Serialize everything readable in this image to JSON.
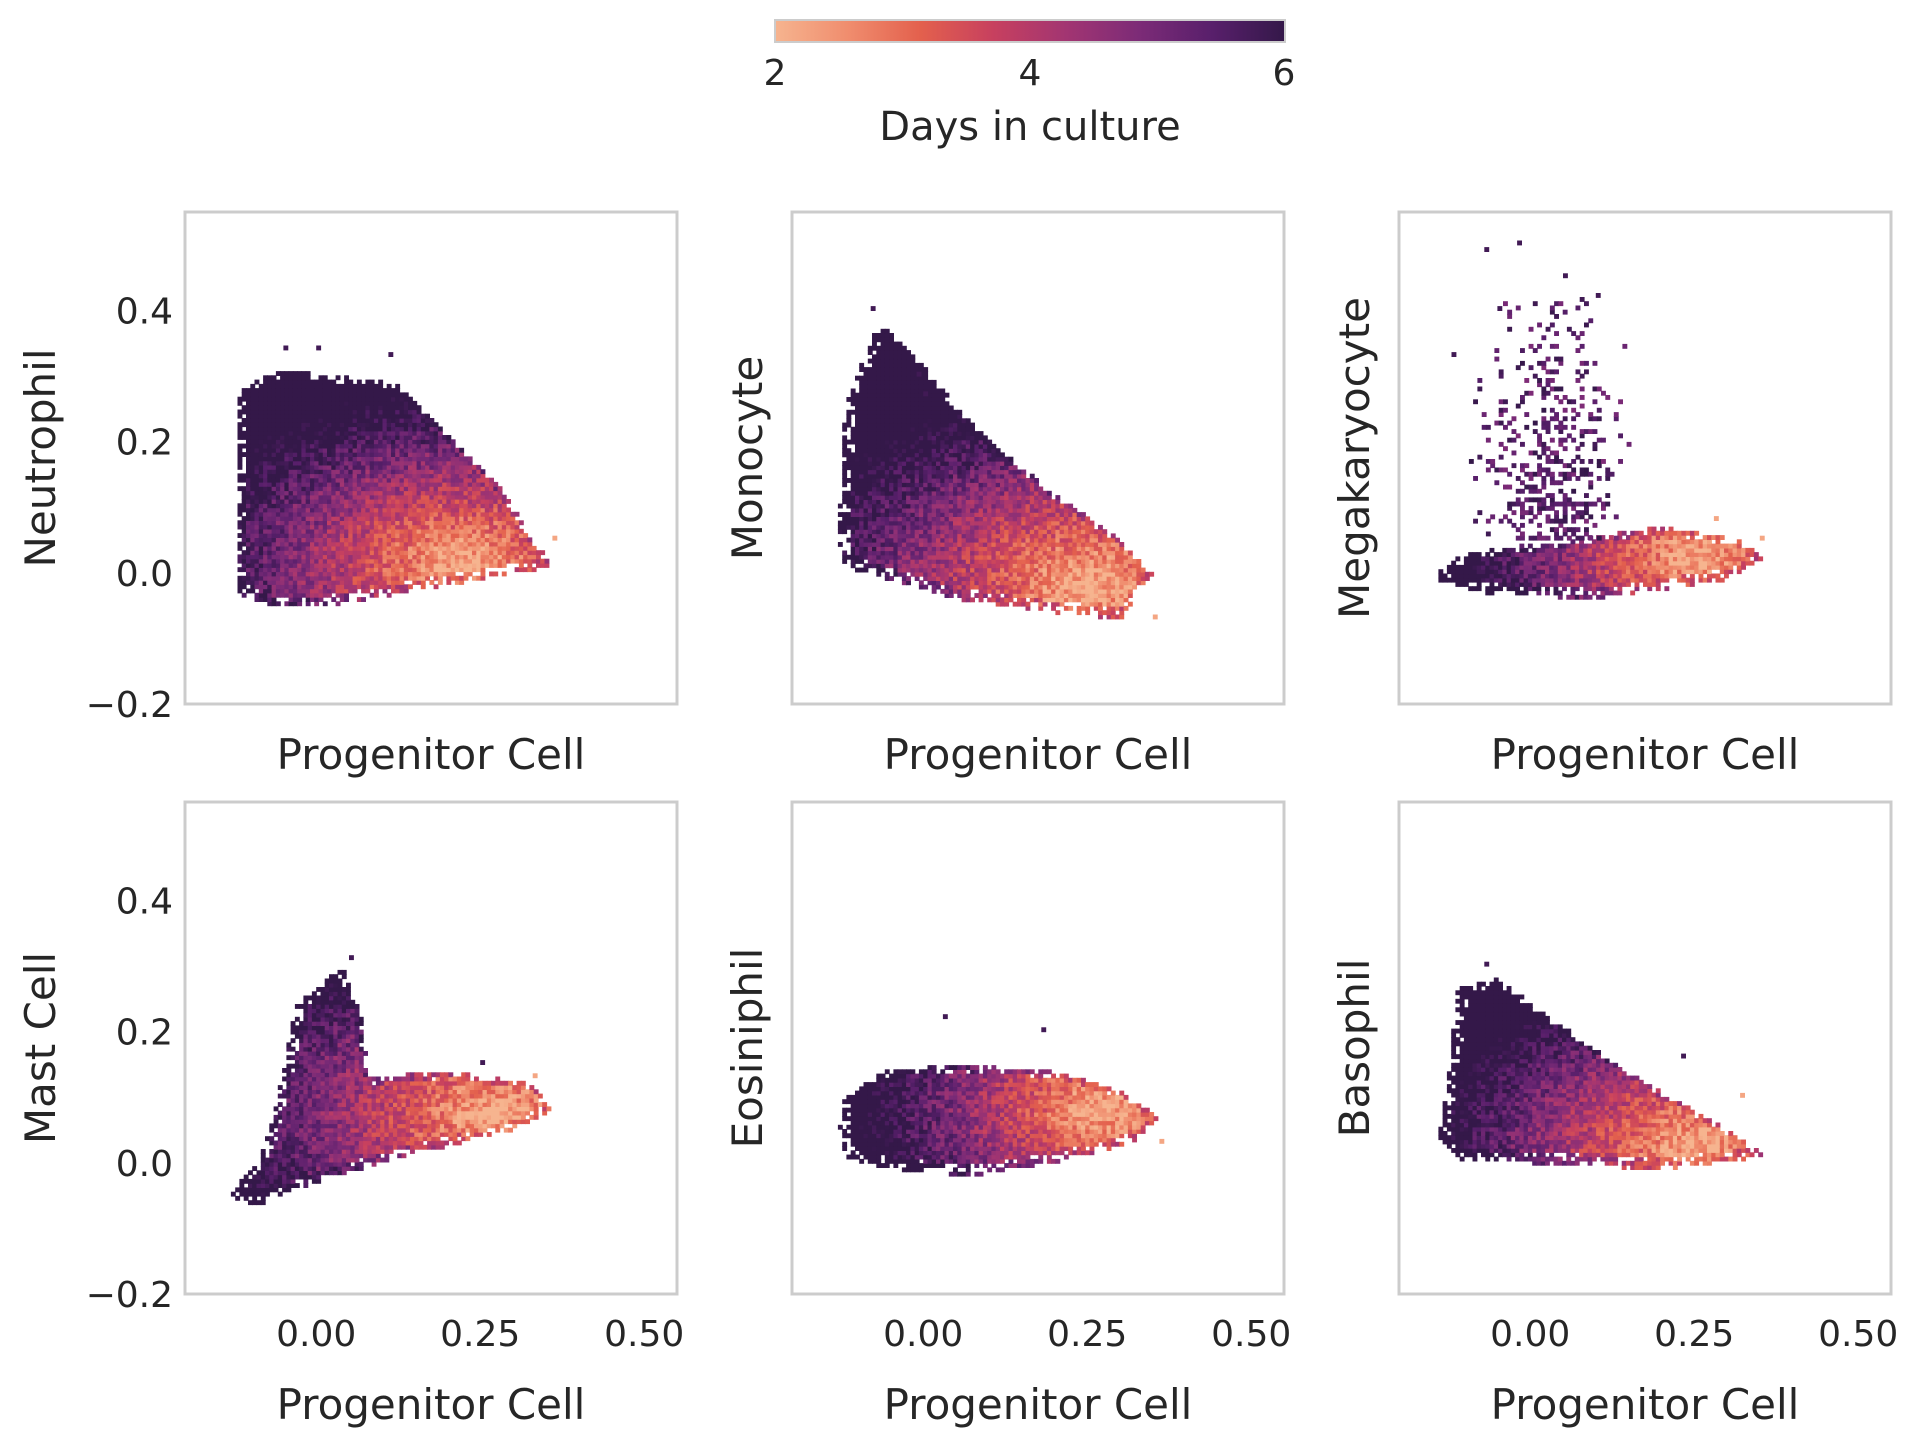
{
  "colorbar": {
    "label": "Days in culture",
    "range": [
      2,
      6
    ],
    "ticks": [
      "2",
      "4",
      "6"
    ],
    "colormap": [
      "#f6b48f",
      "#f08d6e",
      "#e3604d",
      "#c7405f",
      "#a23572",
      "#7c2b77",
      "#581f6b",
      "#341849"
    ]
  },
  "chart_data": [
    {
      "type": "heatmap",
      "panel": "neutrophil",
      "xlabel": "Progenitor Cell",
      "ylabel": "Neutrophil",
      "xlim": [
        -0.2,
        0.55
      ],
      "ylim": [
        -0.2,
        0.55
      ],
      "yticks": [
        "−0.2",
        "0.0",
        "0.2",
        "0.4"
      ],
      "xticks": [],
      "shape": [
        [
          -0.12,
          -0.03
        ],
        [
          -0.12,
          0.28
        ],
        [
          -0.05,
          0.31
        ],
        [
          0.12,
          0.29
        ],
        [
          0.28,
          0.13
        ],
        [
          0.36,
          0.01
        ],
        [
          0.25,
          -0.01
        ],
        [
          0.02,
          -0.05
        ],
        [
          -0.08,
          -0.05
        ]
      ],
      "early_region": [
        0.22,
        0.01
      ],
      "outliers": [
        [
          0.11,
          0.33
        ],
        [
          0.0,
          0.34
        ],
        [
          -0.05,
          0.34
        ],
        [
          0.36,
          0.05
        ]
      ]
    },
    {
      "type": "heatmap",
      "panel": "monocyte",
      "xlabel": "Progenitor Cell",
      "ylabel": "Monocyte",
      "xlim": [
        -0.2,
        0.55
      ],
      "ylim": [
        -0.2,
        0.55
      ],
      "yticks": [],
      "xticks": [],
      "shape": [
        [
          -0.13,
          0.05
        ],
        [
          -0.12,
          0.25
        ],
        [
          -0.07,
          0.38
        ],
        [
          -0.03,
          0.35
        ],
        [
          0.08,
          0.22
        ],
        [
          0.2,
          0.12
        ],
        [
          0.3,
          0.05
        ],
        [
          0.35,
          0.0
        ],
        [
          0.3,
          -0.07
        ],
        [
          0.2,
          -0.06
        ],
        [
          0.05,
          -0.04
        ],
        [
          -0.05,
          -0.01
        ],
        [
          -0.12,
          0.01
        ]
      ],
      "early_region": [
        0.25,
        -0.02
      ],
      "outliers": [
        [
          -0.08,
          0.4
        ],
        [
          -0.01,
          0.3
        ],
        [
          0.35,
          -0.07
        ],
        [
          0.0,
          0.27
        ]
      ]
    },
    {
      "type": "heatmap",
      "panel": "megakaryocyte",
      "xlabel": "Progenitor Cell",
      "ylabel": "Megakaryocyte",
      "xlim": [
        -0.2,
        0.55
      ],
      "ylim": [
        -0.2,
        0.55
      ],
      "yticks": [],
      "xticks": [],
      "shape": [
        [
          -0.14,
          0.0
        ],
        [
          -0.1,
          0.03
        ],
        [
          0.05,
          0.05
        ],
        [
          0.2,
          0.07
        ],
        [
          0.32,
          0.05
        ],
        [
          0.36,
          0.02
        ],
        [
          0.3,
          -0.01
        ],
        [
          0.1,
          -0.04
        ],
        [
          -0.07,
          -0.03
        ],
        [
          -0.14,
          -0.01
        ]
      ],
      "early_region": [
        0.25,
        0.02
      ],
      "outliers": [
        [
          -0.07,
          0.49
        ],
        [
          -0.02,
          0.5
        ],
        [
          0.05,
          0.45
        ],
        [
          -0.12,
          0.33
        ],
        [
          0.1,
          0.42
        ],
        [
          -0.05,
          0.4
        ],
        [
          0.35,
          0.05
        ],
        [
          0.28,
          0.08
        ]
      ],
      "sparse_cloud": {
        "x": [
          -0.1,
          0.15
        ],
        "y": [
          0.05,
          0.42
        ]
      }
    },
    {
      "type": "heatmap",
      "panel": "mast-cell",
      "xlabel": "Progenitor Cell",
      "ylabel": "Mast Cell",
      "xlim": [
        -0.2,
        0.55
      ],
      "ylim": [
        -0.2,
        0.55
      ],
      "yticks": [
        "−0.2",
        "0.0",
        "0.2",
        "0.4"
      ],
      "xticks": [
        "0.00",
        "0.25",
        "0.50"
      ],
      "shape": [
        [
          -0.13,
          -0.05
        ],
        [
          -0.08,
          0.02
        ],
        [
          -0.06,
          0.1
        ],
        [
          -0.03,
          0.24
        ],
        [
          0.04,
          0.3
        ],
        [
          0.07,
          0.22
        ],
        [
          0.08,
          0.13
        ],
        [
          0.2,
          0.14
        ],
        [
          0.33,
          0.12
        ],
        [
          0.36,
          0.08
        ],
        [
          0.3,
          0.05
        ],
        [
          0.1,
          0.0
        ],
        [
          0.0,
          -0.03
        ],
        [
          -0.1,
          -0.07
        ]
      ],
      "early_region": [
        0.27,
        0.07
      ],
      "outliers": [
        [
          0.05,
          0.31
        ],
        [
          0.33,
          0.13
        ],
        [
          0.25,
          0.15
        ]
      ]
    },
    {
      "type": "heatmap",
      "panel": "eosiniphil",
      "xlabel": "Progenitor Cell",
      "ylabel": "Eosiniphil",
      "xlim": [
        -0.2,
        0.55
      ],
      "ylim": [
        -0.2,
        0.55
      ],
      "yticks": [],
      "xticks": [
        "0.00",
        "0.25",
        "0.50"
      ],
      "shape": [
        [
          -0.13,
          0.05
        ],
        [
          -0.12,
          0.1
        ],
        [
          -0.06,
          0.14
        ],
        [
          0.05,
          0.15
        ],
        [
          0.2,
          0.14
        ],
        [
          0.3,
          0.11
        ],
        [
          0.36,
          0.07
        ],
        [
          0.32,
          0.03
        ],
        [
          0.2,
          0.0
        ],
        [
          0.08,
          -0.02
        ],
        [
          -0.05,
          -0.01
        ],
        [
          -0.12,
          0.01
        ]
      ],
      "early_region": [
        0.27,
        0.08
      ],
      "outliers": [
        [
          0.03,
          0.22
        ],
        [
          0.18,
          0.2
        ],
        [
          0.36,
          0.03
        ]
      ]
    },
    {
      "type": "heatmap",
      "panel": "basophil",
      "xlabel": "Progenitor Cell",
      "ylabel": "Basophil",
      "xlim": [
        -0.2,
        0.55
      ],
      "ylim": [
        -0.2,
        0.55
      ],
      "yticks": [],
      "xticks": [
        "0.00",
        "0.25",
        "0.50"
      ],
      "shape": [
        [
          -0.14,
          0.04
        ],
        [
          -0.13,
          0.1
        ],
        [
          -0.11,
          0.27
        ],
        [
          -0.05,
          0.28
        ],
        [
          0.06,
          0.2
        ],
        [
          0.18,
          0.12
        ],
        [
          0.3,
          0.05
        ],
        [
          0.36,
          0.01
        ],
        [
          0.2,
          -0.01
        ],
        [
          0.0,
          0.0
        ],
        [
          -0.1,
          0.0
        ]
      ],
      "early_region": [
        0.25,
        0.02
      ],
      "outliers": [
        [
          -0.07,
          0.3
        ],
        [
          0.23,
          0.16
        ],
        [
          0.32,
          0.1
        ]
      ]
    }
  ]
}
